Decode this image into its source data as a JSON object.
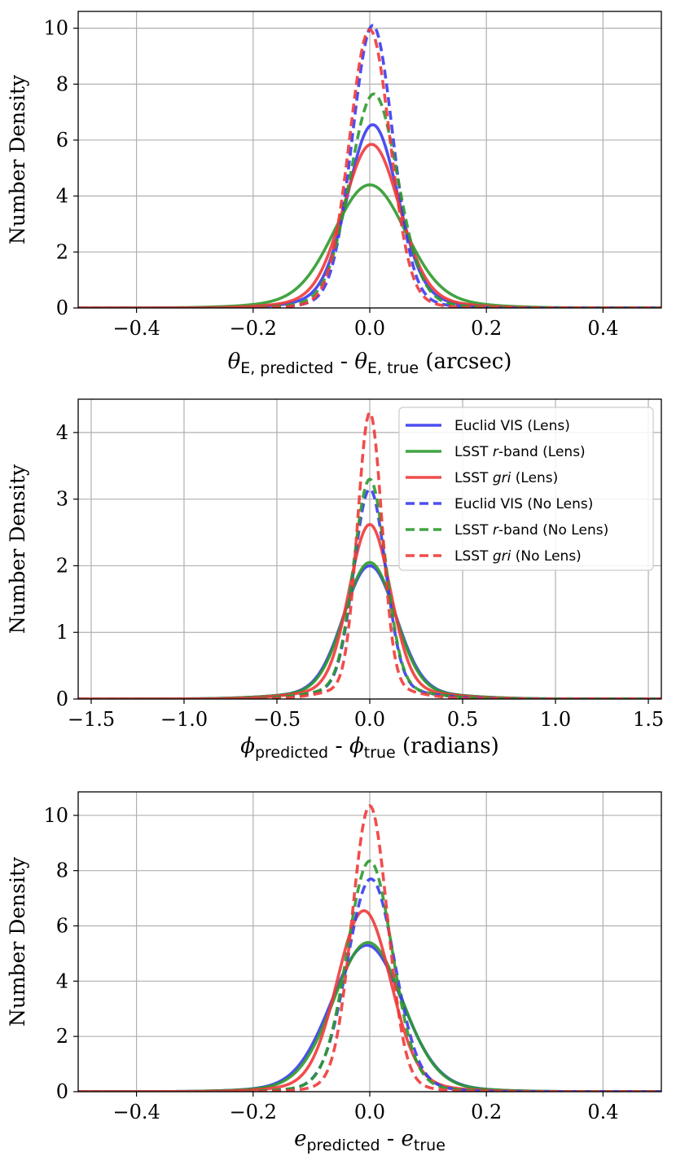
{
  "chart_data": [
    {
      "type": "line",
      "id": "theta",
      "xlim": [
        -0.5,
        0.5
      ],
      "ylim": [
        0,
        10.6
      ],
      "xticks": [
        -0.4,
        -0.2,
        0.0,
        0.2,
        0.4
      ],
      "xtick_labels": [
        "−0.4",
        "−0.2",
        "0.0",
        "0.2",
        "0.4"
      ],
      "yticks": [
        0,
        2,
        4,
        6,
        8,
        10
      ],
      "ytick_labels": [
        "0",
        "2",
        "4",
        "6",
        "8",
        "10"
      ],
      "ylabel": "Number Density",
      "xlabel": {
        "sym": "θ",
        "sub1": "E, predicted",
        "sep": " - ",
        "sub2": "E, true",
        "units": " (arcsec)"
      },
      "grid": true,
      "legend": null,
      "series": [
        {
          "name": "Euclid VIS (Lens)",
          "color": "#3b3bf0",
          "dashed": false,
          "peak": 6.55,
          "center": 0.005,
          "sigma": 0.042,
          "sigma_tail": 0.09,
          "tail_weight": 0.08
        },
        {
          "name": "LSST r-band (Lens)",
          "color": "#2e9a2e",
          "dashed": false,
          "peak": 4.4,
          "center": 0.0,
          "sigma": 0.06,
          "sigma_tail": 0.12,
          "tail_weight": 0.1
        },
        {
          "name": "LSST gri (Lens)",
          "color": "#f03a3a",
          "dashed": false,
          "peak": 5.85,
          "center": 0.003,
          "sigma": 0.047,
          "sigma_tail": 0.1,
          "tail_weight": 0.08
        },
        {
          "name": "Euclid VIS (No Lens)",
          "color": "#3b3bf0",
          "dashed": true,
          "peak": 10.1,
          "center": 0.005,
          "sigma": 0.034,
          "sigma_tail": 0.07,
          "tail_weight": 0.05
        },
        {
          "name": "LSST r-band (No Lens)",
          "color": "#2e9a2e",
          "dashed": true,
          "peak": 7.65,
          "center": 0.007,
          "sigma": 0.04,
          "sigma_tail": 0.08,
          "tail_weight": 0.06
        },
        {
          "name": "LSST gri (No Lens)",
          "color": "#f03a3a",
          "dashed": true,
          "peak": 9.95,
          "center": 0.0,
          "sigma": 0.034,
          "sigma_tail": 0.065,
          "tail_weight": 0.05
        }
      ]
    },
    {
      "type": "line",
      "id": "phi",
      "xlim": [
        -1.57,
        1.57
      ],
      "ylim": [
        0,
        4.5
      ],
      "xticks": [
        -1.5,
        -1.0,
        -0.5,
        0.0,
        0.5,
        1.0,
        1.5
      ],
      "xtick_labels": [
        "−1.5",
        "−1.0",
        "−0.5",
        "0.0",
        "0.5",
        "1.0",
        "1.5"
      ],
      "yticks": [
        0,
        1,
        2,
        3,
        4
      ],
      "ytick_labels": [
        "0",
        "1",
        "2",
        "3",
        "4"
      ],
      "ylabel": "Number Density",
      "xlabel": {
        "sym": "ϕ",
        "sub1": "predicted",
        "sep": " - ",
        "sub2": "true",
        "units": " (radians)"
      },
      "grid": true,
      "legend": {
        "position": "top-right",
        "entries": [
          {
            "pre": "Euclid VIS (Lens)",
            "it": "",
            "post": "",
            "color": "#3b3bf0",
            "dashed": false
          },
          {
            "pre": "LSST ",
            "it": "r",
            "post": "-band (Lens)",
            "color": "#2e9a2e",
            "dashed": false
          },
          {
            "pre": "LSST ",
            "it": "gri",
            "post": " (Lens)",
            "color": "#f03a3a",
            "dashed": false
          },
          {
            "pre": "Euclid VIS (No Lens)",
            "it": "",
            "post": "",
            "color": "#3b3bf0",
            "dashed": true
          },
          {
            "pre": "LSST ",
            "it": "r",
            "post": "-band (No Lens)",
            "color": "#2e9a2e",
            "dashed": true
          },
          {
            "pre": "LSST ",
            "it": "gri",
            "post": " (No Lens)",
            "color": "#f03a3a",
            "dashed": true
          }
        ]
      },
      "series": [
        {
          "name": "Euclid VIS (Lens)",
          "color": "#3b3bf0",
          "dashed": false,
          "peak": 2.0,
          "center": 0.0,
          "sigma": 0.14,
          "sigma_tail": 0.35,
          "tail_weight": 0.07
        },
        {
          "name": "LSST r-band (Lens)",
          "color": "#2e9a2e",
          "dashed": false,
          "peak": 2.05,
          "center": 0.0,
          "sigma": 0.135,
          "sigma_tail": 0.35,
          "tail_weight": 0.07
        },
        {
          "name": "LSST gri (Lens)",
          "color": "#f03a3a",
          "dashed": false,
          "peak": 2.62,
          "center": 0.0,
          "sigma": 0.11,
          "sigma_tail": 0.3,
          "tail_weight": 0.07
        },
        {
          "name": "Euclid VIS (No Lens)",
          "color": "#3b3bf0",
          "dashed": true,
          "peak": 3.15,
          "center": 0.0,
          "sigma": 0.085,
          "sigma_tail": 0.25,
          "tail_weight": 0.06
        },
        {
          "name": "LSST r-band (No Lens)",
          "color": "#2e9a2e",
          "dashed": true,
          "peak": 3.3,
          "center": 0.0,
          "sigma": 0.085,
          "sigma_tail": 0.25,
          "tail_weight": 0.06
        },
        {
          "name": "LSST gri (No Lens)",
          "color": "#f03a3a",
          "dashed": true,
          "peak": 4.3,
          "center": 0.0,
          "sigma": 0.065,
          "sigma_tail": 0.2,
          "tail_weight": 0.05
        }
      ]
    },
    {
      "type": "line",
      "id": "ellipticity",
      "xlim": [
        -0.5,
        0.5
      ],
      "ylim": [
        0,
        10.85
      ],
      "xticks": [
        -0.4,
        -0.2,
        0.0,
        0.2,
        0.4
      ],
      "xtick_labels": [
        "−0.4",
        "−0.2",
        "0.0",
        "0.2",
        "0.4"
      ],
      "yticks": [
        0,
        2,
        4,
        6,
        8,
        10
      ],
      "ytick_labels": [
        "0",
        "2",
        "4",
        "6",
        "8",
        "10"
      ],
      "ylabel": "Number Density",
      "xlabel": {
        "sym": "e",
        "sub1": "predicted",
        "sep": " - ",
        "sub2": "true",
        "units": ""
      },
      "grid": true,
      "legend": null,
      "series": [
        {
          "name": "Euclid VIS (Lens)",
          "color": "#3b3bf0",
          "dashed": false,
          "peak": 5.3,
          "center": -0.005,
          "sigma": 0.06,
          "sigma_tail": 0.12,
          "tail_weight": 0.06
        },
        {
          "name": "LSST r-band (Lens)",
          "color": "#2e9a2e",
          "dashed": false,
          "peak": 5.4,
          "center": -0.003,
          "sigma": 0.058,
          "sigma_tail": 0.12,
          "tail_weight": 0.06
        },
        {
          "name": "LSST gri (Lens)",
          "color": "#f03a3a",
          "dashed": false,
          "peak": 6.55,
          "center": -0.01,
          "sigma": 0.045,
          "sigma_tail": 0.1,
          "tail_weight": 0.06
        },
        {
          "name": "Euclid VIS (No Lens)",
          "color": "#3b3bf0",
          "dashed": true,
          "peak": 7.7,
          "center": 0.002,
          "sigma": 0.04,
          "sigma_tail": 0.08,
          "tail_weight": 0.05
        },
        {
          "name": "LSST r-band (No Lens)",
          "color": "#2e9a2e",
          "dashed": true,
          "peak": 8.35,
          "center": 0.0,
          "sigma": 0.038,
          "sigma_tail": 0.08,
          "tail_weight": 0.05
        },
        {
          "name": "LSST gri (No Lens)",
          "color": "#f03a3a",
          "dashed": true,
          "peak": 10.35,
          "center": 0.0,
          "sigma": 0.03,
          "sigma_tail": 0.065,
          "tail_weight": 0.04
        }
      ]
    }
  ]
}
